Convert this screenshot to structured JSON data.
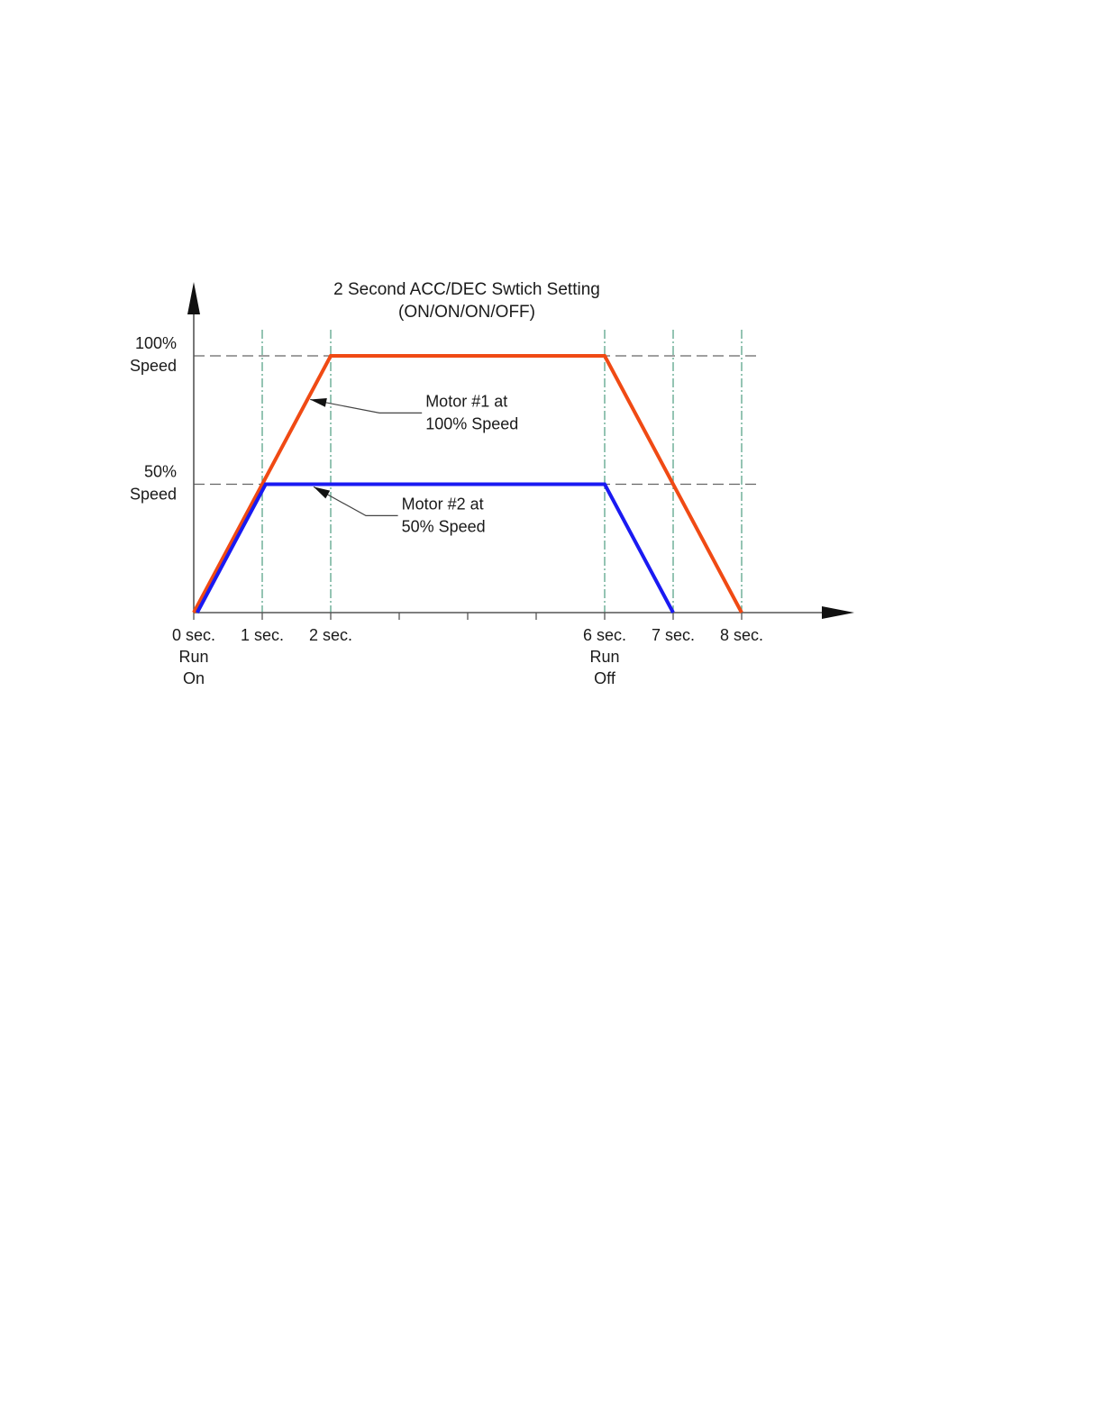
{
  "chart_data": {
    "type": "line",
    "title": "2 Second ACC/DEC Swtich Setting",
    "subtitle": "(ON/ON/ON/OFF)",
    "xlim": [
      0,
      9.6
    ],
    "ylim": [
      0,
      115
    ],
    "grid": true,
    "x_ticks": [
      0,
      1,
      2,
      3,
      4,
      5,
      6,
      7,
      8
    ],
    "x_tick_labels": [
      {
        "x": 0,
        "lines": [
          "0 sec.",
          "Run",
          "On"
        ]
      },
      {
        "x": 1,
        "lines": [
          "1 sec."
        ]
      },
      {
        "x": 2,
        "lines": [
          "2 sec."
        ]
      },
      {
        "x": 6,
        "lines": [
          "6 sec.",
          "Run",
          "Off"
        ]
      },
      {
        "x": 7,
        "lines": [
          "7 sec."
        ]
      },
      {
        "x": 8,
        "lines": [
          "8 sec."
        ]
      }
    ],
    "vertical_gridlines": [
      1,
      2,
      6,
      7,
      8
    ],
    "y_reference_lines": [
      {
        "y": 100,
        "lines": [
          "100%",
          "Speed"
        ]
      },
      {
        "y": 50,
        "lines": [
          "50%",
          "Speed"
        ]
      }
    ],
    "series": [
      {
        "name": "Motor #1 at 100% Speed",
        "color": "#f04a14",
        "x": [
          0,
          2,
          6,
          8
        ],
        "y": [
          0,
          100,
          100,
          0
        ]
      },
      {
        "name": "Motor #2 at 50% Speed",
        "color": "#1a1af2",
        "x": [
          0.05,
          1.05,
          6,
          7
        ],
        "y": [
          0,
          50,
          50,
          0
        ]
      }
    ],
    "annotations": [
      {
        "lines": [
          "Motor #1 at",
          "100% Speed"
        ],
        "arrow_to": {
          "x": 1.7,
          "y": 83
        },
        "text_at": {
          "x": 3.2,
          "y": 76
        }
      },
      {
        "lines": [
          "Motor #2 at",
          "50% Speed"
        ],
        "arrow_to": {
          "x": 1.75,
          "y": 49
        },
        "text_at": {
          "x": 2.85,
          "y": 36
        }
      }
    ]
  }
}
